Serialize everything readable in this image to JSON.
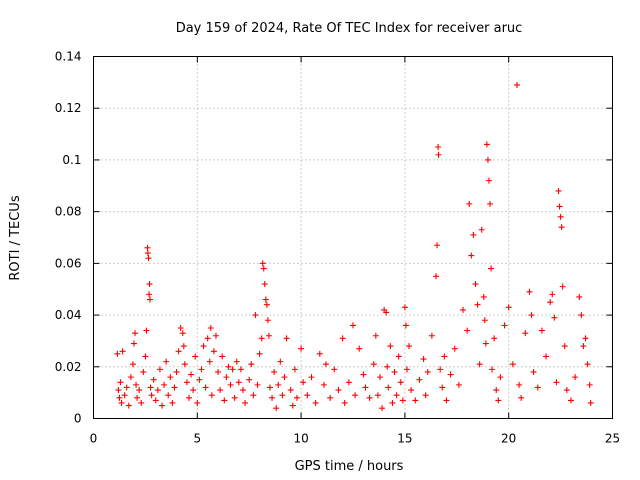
{
  "chart_data": {
    "type": "scatter",
    "title": "Day 159 of 2024, Rate Of TEC Index for receiver aruc",
    "xlabel": "GPS time / hours",
    "ylabel": "ROTI / TECUs",
    "xlim": [
      0,
      25
    ],
    "ylim": [
      0,
      0.14
    ],
    "xticks": [
      0,
      5,
      10,
      15,
      20,
      25
    ],
    "xtick_labels": [
      "0",
      "5",
      "10",
      "15",
      "20",
      "25"
    ],
    "yticks": [
      0,
      0.02,
      0.04,
      0.06,
      0.08,
      0.1,
      0.12,
      0.14
    ],
    "ytick_labels": [
      "0",
      "0.02",
      "0.04",
      "0.06",
      "0.08",
      "0.1",
      "0.12",
      "0.14"
    ],
    "grid": true,
    "marker": "+",
    "color": "#ff0000",
    "series": [
      {
        "name": "ROTI",
        "points": [
          [
            1.15,
            0.025
          ],
          [
            1.2,
            0.011
          ],
          [
            1.25,
            0.008
          ],
          [
            1.3,
            0.014
          ],
          [
            1.35,
            0.006
          ],
          [
            1.4,
            0.026
          ],
          [
            1.5,
            0.009
          ],
          [
            1.6,
            0.012
          ],
          [
            1.7,
            0.005
          ],
          [
            1.8,
            0.016
          ],
          [
            1.9,
            0.021
          ],
          [
            1.95,
            0.029
          ],
          [
            2.0,
            0.033
          ],
          [
            2.05,
            0.013
          ],
          [
            2.1,
            0.008
          ],
          [
            2.2,
            0.011
          ],
          [
            2.3,
            0.006
          ],
          [
            2.4,
            0.018
          ],
          [
            2.5,
            0.024
          ],
          [
            2.55,
            0.034
          ],
          [
            2.6,
            0.066
          ],
          [
            2.62,
            0.064
          ],
          [
            2.65,
            0.062
          ],
          [
            2.68,
            0.048
          ],
          [
            2.7,
            0.052
          ],
          [
            2.72,
            0.046
          ],
          [
            2.75,
            0.012
          ],
          [
            2.8,
            0.009
          ],
          [
            2.9,
            0.015
          ],
          [
            3.0,
            0.007
          ],
          [
            3.1,
            0.011
          ],
          [
            3.2,
            0.019
          ],
          [
            3.3,
            0.005
          ],
          [
            3.4,
            0.013
          ],
          [
            3.5,
            0.022
          ],
          [
            3.6,
            0.009
          ],
          [
            3.7,
            0.016
          ],
          [
            3.8,
            0.006
          ],
          [
            3.9,
            0.012
          ],
          [
            4.0,
            0.018
          ],
          [
            4.1,
            0.026
          ],
          [
            4.2,
            0.035
          ],
          [
            4.3,
            0.033
          ],
          [
            4.35,
            0.028
          ],
          [
            4.4,
            0.021
          ],
          [
            4.5,
            0.014
          ],
          [
            4.6,
            0.008
          ],
          [
            4.7,
            0.017
          ],
          [
            4.8,
            0.011
          ],
          [
            4.9,
            0.024
          ],
          [
            5.0,
            0.006
          ],
          [
            5.1,
            0.015
          ],
          [
            5.2,
            0.019
          ],
          [
            5.3,
            0.028
          ],
          [
            5.4,
            0.012
          ],
          [
            5.5,
            0.031
          ],
          [
            5.6,
            0.022
          ],
          [
            5.65,
            0.035
          ],
          [
            5.7,
            0.009
          ],
          [
            5.8,
            0.026
          ],
          [
            5.9,
            0.032
          ],
          [
            6.0,
            0.018
          ],
          [
            6.1,
            0.011
          ],
          [
            6.2,
            0.024
          ],
          [
            6.3,
            0.007
          ],
          [
            6.4,
            0.016
          ],
          [
            6.5,
            0.02
          ],
          [
            6.6,
            0.013
          ],
          [
            6.7,
            0.019
          ],
          [
            6.8,
            0.008
          ],
          [
            6.9,
            0.022
          ],
          [
            7.0,
            0.014
          ],
          [
            7.1,
            0.019
          ],
          [
            7.2,
            0.011
          ],
          [
            7.3,
            0.006
          ],
          [
            7.5,
            0.015
          ],
          [
            7.6,
            0.021
          ],
          [
            7.7,
            0.009
          ],
          [
            7.8,
            0.04
          ],
          [
            7.9,
            0.013
          ],
          [
            8.0,
            0.025
          ],
          [
            8.1,
            0.031
          ],
          [
            8.15,
            0.06
          ],
          [
            8.2,
            0.058
          ],
          [
            8.25,
            0.052
          ],
          [
            8.3,
            0.046
          ],
          [
            8.35,
            0.044
          ],
          [
            8.4,
            0.038
          ],
          [
            8.45,
            0.032
          ],
          [
            8.5,
            0.012
          ],
          [
            8.6,
            0.008
          ],
          [
            8.7,
            0.018
          ],
          [
            8.8,
            0.004
          ],
          [
            8.9,
            0.013
          ],
          [
            9.0,
            0.022
          ],
          [
            9.1,
            0.009
          ],
          [
            9.2,
            0.016
          ],
          [
            9.3,
            0.031
          ],
          [
            9.5,
            0.011
          ],
          [
            9.6,
            0.005
          ],
          [
            9.7,
            0.019
          ],
          [
            9.8,
            0.008
          ],
          [
            10.0,
            0.027
          ],
          [
            10.1,
            0.014
          ],
          [
            10.3,
            0.009
          ],
          [
            10.5,
            0.016
          ],
          [
            10.7,
            0.006
          ],
          [
            10.9,
            0.025
          ],
          [
            11.1,
            0.013
          ],
          [
            11.2,
            0.021
          ],
          [
            11.4,
            0.008
          ],
          [
            11.6,
            0.019
          ],
          [
            11.8,
            0.011
          ],
          [
            12.0,
            0.031
          ],
          [
            12.1,
            0.006
          ],
          [
            12.3,
            0.014
          ],
          [
            12.5,
            0.036
          ],
          [
            12.6,
            0.009
          ],
          [
            12.8,
            0.027
          ],
          [
            13.0,
            0.017
          ],
          [
            13.1,
            0.012
          ],
          [
            13.3,
            0.008
          ],
          [
            13.5,
            0.021
          ],
          [
            13.6,
            0.032
          ],
          [
            13.7,
            0.009
          ],
          [
            13.8,
            0.016
          ],
          [
            13.9,
            0.004
          ],
          [
            14.0,
            0.042
          ],
          [
            14.1,
            0.041
          ],
          [
            14.15,
            0.02
          ],
          [
            14.2,
            0.012
          ],
          [
            14.3,
            0.028
          ],
          [
            14.4,
            0.006
          ],
          [
            14.5,
            0.018
          ],
          [
            14.6,
            0.009
          ],
          [
            14.7,
            0.024
          ],
          [
            14.8,
            0.014
          ],
          [
            14.9,
            0.007
          ],
          [
            15.0,
            0.043
          ],
          [
            15.05,
            0.036
          ],
          [
            15.1,
            0.019
          ],
          [
            15.2,
            0.028
          ],
          [
            15.3,
            0.011
          ],
          [
            15.5,
            0.007
          ],
          [
            15.7,
            0.015
          ],
          [
            15.9,
            0.023
          ],
          [
            16.0,
            0.009
          ],
          [
            16.1,
            0.018
          ],
          [
            16.3,
            0.032
          ],
          [
            16.5,
            0.055
          ],
          [
            16.55,
            0.067
          ],
          [
            16.6,
            0.105
          ],
          [
            16.62,
            0.102
          ],
          [
            16.7,
            0.019
          ],
          [
            16.8,
            0.012
          ],
          [
            16.9,
            0.024
          ],
          [
            17.0,
            0.007
          ],
          [
            17.2,
            0.017
          ],
          [
            17.4,
            0.027
          ],
          [
            17.6,
            0.013
          ],
          [
            17.8,
            0.042
          ],
          [
            18.0,
            0.034
          ],
          [
            18.1,
            0.083
          ],
          [
            18.2,
            0.063
          ],
          [
            18.3,
            0.071
          ],
          [
            18.4,
            0.052
          ],
          [
            18.5,
            0.044
          ],
          [
            18.6,
            0.021
          ],
          [
            18.7,
            0.073
          ],
          [
            18.8,
            0.047
          ],
          [
            18.85,
            0.038
          ],
          [
            18.9,
            0.029
          ],
          [
            18.95,
            0.106
          ],
          [
            19.0,
            0.1
          ],
          [
            19.05,
            0.092
          ],
          [
            19.1,
            0.083
          ],
          [
            19.15,
            0.058
          ],
          [
            19.2,
            0.019
          ],
          [
            19.3,
            0.031
          ],
          [
            19.4,
            0.011
          ],
          [
            19.5,
            0.007
          ],
          [
            19.6,
            0.016
          ],
          [
            19.8,
            0.036
          ],
          [
            20.0,
            0.043
          ],
          [
            20.2,
            0.021
          ],
          [
            20.4,
            0.129
          ],
          [
            20.5,
            0.013
          ],
          [
            20.6,
            0.008
          ],
          [
            20.8,
            0.033
          ],
          [
            21.0,
            0.049
          ],
          [
            21.1,
            0.04
          ],
          [
            21.2,
            0.018
          ],
          [
            21.4,
            0.012
          ],
          [
            21.6,
            0.034
          ],
          [
            21.8,
            0.024
          ],
          [
            22.0,
            0.045
          ],
          [
            22.1,
            0.048
          ],
          [
            22.2,
            0.039
          ],
          [
            22.3,
            0.014
          ],
          [
            22.4,
            0.088
          ],
          [
            22.45,
            0.082
          ],
          [
            22.5,
            0.078
          ],
          [
            22.55,
            0.074
          ],
          [
            22.6,
            0.051
          ],
          [
            22.7,
            0.028
          ],
          [
            22.8,
            0.011
          ],
          [
            23.0,
            0.007
          ],
          [
            23.2,
            0.016
          ],
          [
            23.4,
            0.047
          ],
          [
            23.5,
            0.04
          ],
          [
            23.6,
            0.028
          ],
          [
            23.7,
            0.031
          ],
          [
            23.8,
            0.021
          ],
          [
            23.9,
            0.013
          ],
          [
            23.95,
            0.006
          ]
        ]
      }
    ]
  }
}
